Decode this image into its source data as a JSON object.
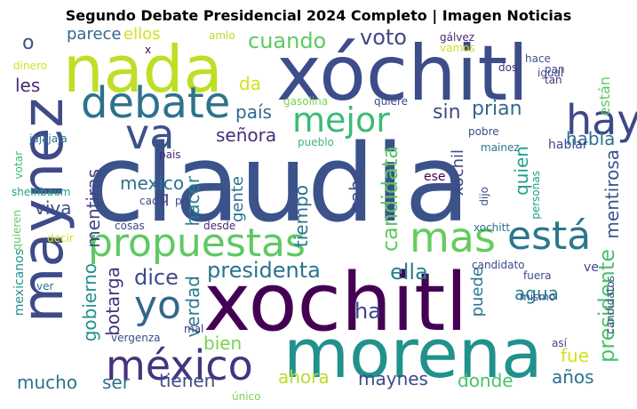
{
  "title": "Segundo Debate Presidencial 2024 Completo | Imagen Noticias",
  "words": [
    {
      "text": "claudia",
      "color": "#3b528b"
    },
    {
      "text": "xóchitl",
      "color": "#3d4d8a"
    },
    {
      "text": "xochitl",
      "color": "#440154"
    },
    {
      "text": "morena",
      "color": "#21918c"
    },
    {
      "text": "nada",
      "color": "#bddf26"
    },
    {
      "text": "maynez",
      "color": "#3e4a89"
    },
    {
      "text": "propuestas",
      "color": "#5ec962"
    },
    {
      "text": "debate",
      "color": "#2c728e"
    },
    {
      "text": "méxico",
      "color": "#46337e"
    },
    {
      "text": "mas",
      "color": "#65cb5e"
    },
    {
      "text": "está",
      "color": "#2a788e"
    },
    {
      "text": "hay",
      "color": "#3f4889"
    },
    {
      "text": "va",
      "color": "#3b528b"
    },
    {
      "text": "mejor",
      "color": "#3bbb75"
    },
    {
      "text": "yo",
      "color": "#31688e"
    },
    {
      "text": "cuando",
      "color": "#5ec962"
    },
    {
      "text": "voto",
      "color": "#3f4889"
    },
    {
      "text": "presidenta",
      "color": "#2c728e"
    },
    {
      "text": "dice",
      "color": "#3e4a89"
    },
    {
      "text": "ella",
      "color": "#26828e"
    },
    {
      "text": "país",
      "color": "#31688e"
    },
    {
      "text": "señora",
      "color": "#472d7b"
    },
    {
      "text": "mexico",
      "color": "#2c728e"
    },
    {
      "text": "prian",
      "color": "#31688e"
    },
    {
      "text": "sin",
      "color": "#3e4a89"
    },
    {
      "text": "habla",
      "color": "#2c728e"
    },
    {
      "text": "candidata",
      "color": "#5ec962"
    },
    {
      "text": "tiempo",
      "color": "#2c728e"
    },
    {
      "text": "quien",
      "color": "#1fa088"
    },
    {
      "text": "mentirosa",
      "color": "#3b528b"
    },
    {
      "text": "presidente",
      "color": "#4ac16d"
    },
    {
      "text": "mentiras",
      "color": "#414487"
    },
    {
      "text": "gobierno",
      "color": "#21918c"
    },
    {
      "text": "botarga",
      "color": "#46337e"
    },
    {
      "text": "verdad",
      "color": "#2a788e"
    },
    {
      "text": "agua",
      "color": "#26828e"
    },
    {
      "text": "ahora",
      "color": "#b5de2b"
    },
    {
      "text": "tienen",
      "color": "#3e4a89"
    },
    {
      "text": "mucho",
      "color": "#2c728e"
    },
    {
      "text": "ser",
      "color": "#2c728e"
    },
    {
      "text": "maynes",
      "color": "#3e4a89"
    },
    {
      "text": "donde",
      "color": "#4ac16d"
    },
    {
      "text": "años",
      "color": "#2c728e"
    },
    {
      "text": "fue",
      "color": "#d2e21b"
    },
    {
      "text": "bien",
      "color": "#7ad151"
    },
    {
      "text": "ha",
      "color": "#414487"
    },
    {
      "text": "puede",
      "color": "#2a788e"
    },
    {
      "text": "viva",
      "color": "#3b528b"
    },
    {
      "text": "hacer",
      "color": "#26828e"
    },
    {
      "text": "gente",
      "color": "#2c728e"
    },
    {
      "text": "sabe",
      "color": "#3e4a89"
    },
    {
      "text": "xochil",
      "color": "#3e4a89"
    },
    {
      "text": "da",
      "color": "#d2e21b"
    },
    {
      "text": "les",
      "color": "#482878"
    },
    {
      "text": "o",
      "color": "#3b528b"
    },
    {
      "text": "parece",
      "color": "#31688e"
    },
    {
      "text": "ellos",
      "color": "#d2e21b"
    },
    {
      "text": "amlo",
      "color": "#b5de2b"
    },
    {
      "text": "x",
      "color": "#440154"
    },
    {
      "text": "gálvez",
      "color": "#482878"
    },
    {
      "text": "vamos",
      "color": "#d2e21b"
    },
    {
      "text": "hace",
      "color": "#3b528b"
    },
    {
      "text": "pan",
      "color": "#3e4a89"
    },
    {
      "text": "tan",
      "color": "#46337e"
    },
    {
      "text": "dos",
      "color": "#472d7b"
    },
    {
      "text": "igual",
      "color": "#3e4a89"
    },
    {
      "text": "están",
      "color": "#5ec962"
    },
    {
      "text": "dinero",
      "color": "#d2e21b"
    },
    {
      "text": "gasolina",
      "color": "#7ad151"
    },
    {
      "text": "quiere",
      "color": "#3e4a89"
    },
    {
      "text": "pueblo",
      "color": "#3bbb75"
    },
    {
      "text": "pobre",
      "color": "#3e4a89"
    },
    {
      "text": "mainez",
      "color": "#2a788e"
    },
    {
      "text": "hablar",
      "color": "#3e4a89"
    },
    {
      "text": "personas",
      "color": "#1fa088"
    },
    {
      "text": "jajajaja",
      "color": "#2c728e"
    },
    {
      "text": "votar",
      "color": "#3bbb75"
    },
    {
      "text": "sheinbaum",
      "color": "#1fa088"
    },
    {
      "text": "quieren",
      "color": "#5ec962"
    },
    {
      "text": "decir",
      "color": "#d2e21b"
    },
    {
      "text": "ver",
      "color": "#2c728e"
    },
    {
      "text": "mexicanos",
      "color": "#21918c"
    },
    {
      "text": "pais",
      "color": "#482878"
    },
    {
      "text": "cada",
      "color": "#3e4a89"
    },
    {
      "text": "pri",
      "color": "#3e4a89"
    },
    {
      "text": "q",
      "color": "#414487"
    },
    {
      "text": "cosas",
      "color": "#3e4a89"
    },
    {
      "text": "desde",
      "color": "#482878"
    },
    {
      "text": "mal",
      "color": "#46337e"
    },
    {
      "text": "vergenza",
      "color": "#3e4a89"
    },
    {
      "text": "único",
      "color": "#7ad151"
    },
    {
      "text": "ese",
      "color": "#440154"
    },
    {
      "text": "dijo",
      "color": "#3e4a89"
    },
    {
      "text": "xochitt",
      "color": "#2c728e"
    },
    {
      "text": "candidato",
      "color": "#3e4a89"
    },
    {
      "text": "ve",
      "color": "#414487"
    },
    {
      "text": "fuera",
      "color": "#3e4a89"
    },
    {
      "text": "mismo",
      "color": "#3e4a89"
    },
    {
      "text": "así",
      "color": "#3e4a89"
    },
    {
      "text": "candidatos",
      "color": "#3e4a89"
    }
  ]
}
